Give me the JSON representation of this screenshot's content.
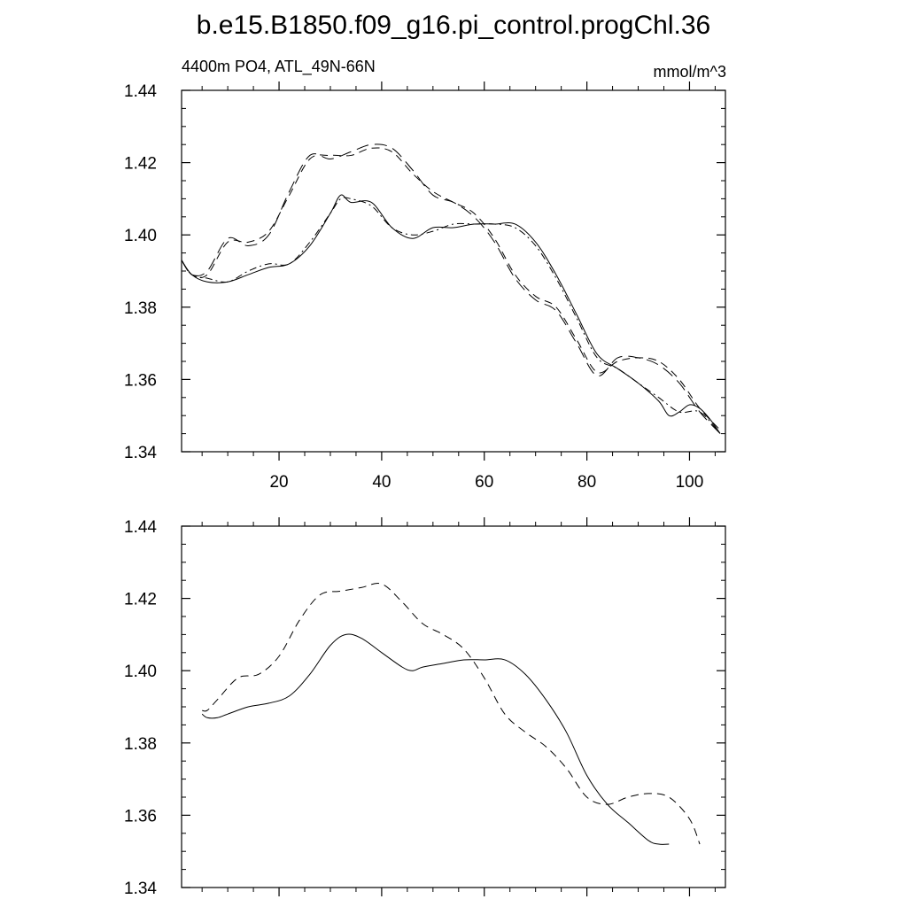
{
  "title": "b.e15.B1850.f09_g16.pi_control.progChl.36",
  "chart_data": [
    {
      "type": "line",
      "left_label": "4400m PO4, ATL_49N-66N",
      "right_label": "mmol/m^3",
      "xlim": [
        1,
        107
      ],
      "ylim": [
        1.34,
        1.44
      ],
      "x_ticks": [
        20,
        40,
        60,
        80,
        100
      ],
      "x_tick_labels": [
        "20",
        "40",
        "60",
        "80",
        "100"
      ],
      "y_ticks": [
        1.34,
        1.36,
        1.38,
        1.4,
        1.42,
        1.44
      ],
      "y_tick_labels": [
        "1.34",
        "1.36",
        "1.38",
        "1.40",
        "1.42",
        "1.44"
      ],
      "grid": false,
      "series": [
        {
          "name": "solid",
          "dash": "solid",
          "x": [
            1,
            3,
            6,
            10,
            14,
            18,
            22,
            26,
            30,
            32,
            34,
            38,
            42,
            46,
            50,
            54,
            58,
            62,
            66,
            70,
            74,
            78,
            82,
            86,
            90,
            94,
            96,
            98,
            100,
            102,
            104,
            106
          ],
          "y": [
            1.393,
            1.389,
            1.387,
            1.387,
            1.389,
            1.391,
            1.392,
            1.397,
            1.406,
            1.411,
            1.409,
            1.409,
            1.402,
            1.399,
            1.402,
            1.402,
            1.403,
            1.403,
            1.403,
            1.398,
            1.389,
            1.378,
            1.367,
            1.363,
            1.359,
            1.354,
            1.35,
            1.351,
            1.353,
            1.352,
            1.349,
            1.345
          ]
        },
        {
          "name": "dashed",
          "dash": "dash",
          "x": [
            1,
            3,
            6,
            10,
            14,
            18,
            22,
            26,
            30,
            34,
            38,
            42,
            46,
            50,
            54,
            58,
            62,
            66,
            70,
            74,
            78,
            82,
            86,
            90,
            94,
            98,
            102,
            106
          ],
          "y": [
            1.393,
            1.389,
            1.389,
            1.398,
            1.398,
            1.401,
            1.411,
            1.421,
            1.422,
            1.422,
            1.424,
            1.423,
            1.417,
            1.412,
            1.409,
            1.406,
            1.399,
            1.389,
            1.383,
            1.38,
            1.371,
            1.362,
            1.365,
            1.366,
            1.365,
            1.36,
            1.352,
            1.346
          ]
        },
        {
          "name": "dash-dot",
          "dash": "dashdot",
          "x": [
            1,
            3,
            6,
            10,
            14,
            18,
            22,
            26,
            30,
            32,
            34,
            38,
            42,
            46,
            50,
            54,
            58,
            62,
            66,
            70,
            74,
            78,
            82,
            86,
            90,
            94,
            98,
            102,
            106
          ],
          "y": [
            1.393,
            1.389,
            1.388,
            1.387,
            1.39,
            1.392,
            1.392,
            1.398,
            1.406,
            1.41,
            1.41,
            1.408,
            1.402,
            1.4,
            1.401,
            1.403,
            1.403,
            1.403,
            1.402,
            1.397,
            1.388,
            1.377,
            1.366,
            1.363,
            1.359,
            1.355,
            1.351,
            1.351,
            1.345
          ]
        },
        {
          "name": "long-dash",
          "dash": "longdash",
          "x": [
            1,
            3,
            6,
            10,
            14,
            18,
            22,
            26,
            30,
            34,
            38,
            42,
            46,
            50,
            54,
            58,
            62,
            66,
            70,
            74,
            78,
            82,
            86,
            90,
            94,
            98,
            102,
            106
          ],
          "y": [
            1.393,
            1.389,
            1.39,
            1.399,
            1.397,
            1.4,
            1.412,
            1.422,
            1.421,
            1.423,
            1.425,
            1.424,
            1.418,
            1.411,
            1.409,
            1.405,
            1.398,
            1.388,
            1.382,
            1.379,
            1.37,
            1.361,
            1.366,
            1.366,
            1.364,
            1.359,
            1.351,
            1.345
          ]
        }
      ]
    },
    {
      "type": "line",
      "xlim": [
        1,
        107
      ],
      "ylim": [
        1.34,
        1.44
      ],
      "x_ticks": [
        20,
        40,
        60,
        80,
        100
      ],
      "y_ticks": [
        1.34,
        1.36,
        1.38,
        1.4,
        1.42,
        1.44
      ],
      "y_tick_labels": [
        "1.34",
        "1.36",
        "1.38",
        "1.40",
        "1.42",
        "1.44"
      ],
      "grid": false,
      "series": [
        {
          "name": "solid",
          "dash": "solid",
          "x": [
            5,
            6,
            8,
            10,
            14,
            18,
            22,
            26,
            30,
            33,
            36,
            40,
            44,
            46,
            48,
            52,
            56,
            60,
            64,
            68,
            72,
            76,
            80,
            84,
            88,
            92,
            94,
            96
          ],
          "y": [
            1.388,
            1.387,
            1.387,
            1.388,
            1.39,
            1.391,
            1.393,
            1.399,
            1.407,
            1.41,
            1.409,
            1.405,
            1.401,
            1.4,
            1.401,
            1.402,
            1.403,
            1.403,
            1.403,
            1.399,
            1.392,
            1.383,
            1.371,
            1.363,
            1.358,
            1.353,
            1.352,
            1.352
          ]
        },
        {
          "name": "dashed",
          "dash": "dash",
          "x": [
            5,
            6,
            8,
            12,
            16,
            20,
            24,
            28,
            32,
            36,
            40,
            44,
            48,
            52,
            56,
            60,
            64,
            68,
            72,
            76,
            80,
            84,
            88,
            92,
            96,
            100,
            102
          ],
          "y": [
            1.389,
            1.389,
            1.392,
            1.398,
            1.399,
            1.404,
            1.414,
            1.421,
            1.422,
            1.423,
            1.424,
            1.419,
            1.413,
            1.41,
            1.406,
            1.398,
            1.388,
            1.383,
            1.379,
            1.373,
            1.365,
            1.363,
            1.365,
            1.366,
            1.365,
            1.359,
            1.352
          ]
        }
      ]
    }
  ]
}
